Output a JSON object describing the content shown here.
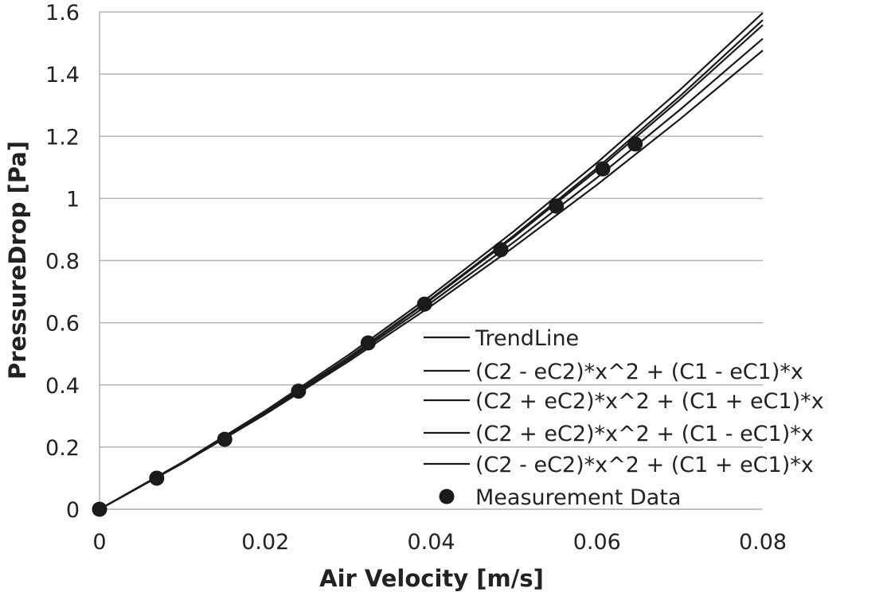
{
  "chart_data": {
    "type": "line",
    "title": "",
    "xlabel": "Air Velocity [m/s]",
    "ylabel": "PressureDrop [Pa]",
    "xlim": [
      0,
      0.08
    ],
    "ylim": [
      0,
      1.6
    ],
    "x_ticks": [
      0,
      0.02,
      0.04,
      0.06,
      0.08
    ],
    "x_tick_labels": [
      "0",
      "0.02",
      "0.04",
      "0.06",
      "0.08"
    ],
    "y_ticks": [
      0,
      0.2,
      0.4,
      0.6,
      0.8,
      1,
      1.2,
      1.4,
      1.6
    ],
    "y_tick_labels": [
      "0",
      "0.2",
      "0.4",
      "0.6",
      "0.8",
      "1",
      "1.2",
      "1.4",
      "1.6"
    ],
    "grid": "horizontal",
    "legend_position": "bottom-right",
    "series": [
      {
        "name": "TrendLine",
        "kind": "line",
        "color": "#1a1a1a",
        "x": [
          0,
          0.01,
          0.02,
          0.03,
          0.04,
          0.05,
          0.06,
          0.07,
          0.08
        ],
        "y": [
          0,
          0.149,
          0.311,
          0.486,
          0.675,
          0.876,
          1.09,
          1.318,
          1.558
        ]
      },
      {
        "name": "(C2 - eC2)*x^2 + (C1 - eC1)*x",
        "kind": "line",
        "color": "#1a1a1a",
        "x": [
          0,
          0.01,
          0.02,
          0.03,
          0.04,
          0.05,
          0.06,
          0.07,
          0.08
        ],
        "y": [
          0,
          0.148,
          0.306,
          0.475,
          0.654,
          0.844,
          1.044,
          1.255,
          1.476
        ]
      },
      {
        "name": "(C2 + eC2)*x^2 + (C1 + eC1)*x",
        "kind": "line",
        "color": "#1a1a1a",
        "x": [
          0,
          0.01,
          0.02,
          0.03,
          0.04,
          0.05,
          0.06,
          0.07,
          0.08
        ],
        "y": [
          0,
          0.151,
          0.317,
          0.496,
          0.688,
          0.895,
          1.115,
          1.349,
          1.597
        ]
      },
      {
        "name": "(C2 + eC2)*x^2 + (C1 - eC1)*x",
        "kind": "line",
        "color": "#1a1a1a",
        "x": [
          0,
          0.01,
          0.02,
          0.03,
          0.04,
          0.05,
          0.06,
          0.07,
          0.08
        ],
        "y": [
          0,
          0.149,
          0.312,
          0.488,
          0.678,
          0.881,
          1.098,
          1.329,
          1.574
        ]
      },
      {
        "name": "(C2 - eC2)*x^2 + (C1 + eC1)*x",
        "kind": "line",
        "color": "#1a1a1a",
        "x": [
          0,
          0.01,
          0.02,
          0.03,
          0.04,
          0.05,
          0.06,
          0.07,
          0.08
        ],
        "y": [
          0,
          0.148,
          0.309,
          0.481,
          0.665,
          0.86,
          1.067,
          1.285,
          1.514
        ]
      },
      {
        "name": "Measurement Data",
        "kind": "scatter",
        "color": "#1a1a1a",
        "x": [
          0,
          0.0069,
          0.0151,
          0.024,
          0.0324,
          0.0392,
          0.0484,
          0.0551,
          0.0607,
          0.0646
        ],
        "y": [
          0,
          0.1,
          0.225,
          0.38,
          0.535,
          0.66,
          0.835,
          0.975,
          1.095,
          1.175
        ]
      }
    ]
  }
}
